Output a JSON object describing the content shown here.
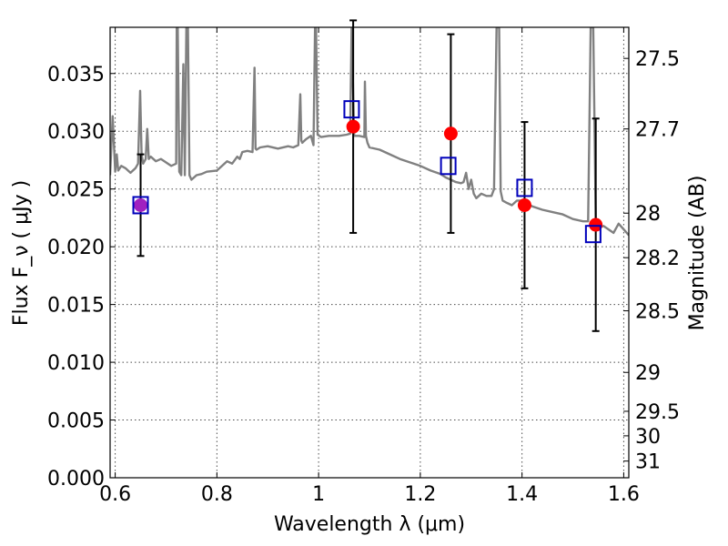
{
  "chart_data": {
    "type": "scatter",
    "xlabel": "Wavelength  λ (μm)",
    "ylabel": "Flux  F_ν  ( μJy )",
    "y2label": "Magnitude (AB)",
    "xlim": [
      0.59,
      1.61
    ],
    "ylim": [
      0.0,
      0.039
    ],
    "grid": true,
    "x_ticks": [
      {
        "value": 0.6,
        "label": "0.6"
      },
      {
        "value": 0.8,
        "label": "0.8"
      },
      {
        "value": 1.0,
        "label": "1"
      },
      {
        "value": 1.2,
        "label": "1.2"
      },
      {
        "value": 1.4,
        "label": "1.4"
      },
      {
        "value": 1.6,
        "label": "1.6"
      }
    ],
    "y_ticks": [
      {
        "value": 0.0,
        "label": "0.000"
      },
      {
        "value": 0.005,
        "label": "0.005"
      },
      {
        "value": 0.01,
        "label": "0.010"
      },
      {
        "value": 0.015,
        "label": "0.015"
      },
      {
        "value": 0.02,
        "label": "0.020"
      },
      {
        "value": 0.025,
        "label": "0.025"
      },
      {
        "value": 0.03,
        "label": "0.030"
      },
      {
        "value": 0.035,
        "label": "0.035"
      }
    ],
    "y2_ticks": [
      {
        "value": 27.5,
        "label": "27.5"
      },
      {
        "value": 27.7,
        "label": "27.7"
      },
      {
        "value": 28.0,
        "label": "28"
      },
      {
        "value": 28.2,
        "label": "28.2"
      },
      {
        "value": 28.5,
        "label": "28.5"
      },
      {
        "value": 29.0,
        "label": "29"
      },
      {
        "value": 29.5,
        "label": "29.5"
      },
      {
        "value": 30.0,
        "label": "30"
      },
      {
        "value": 31.0,
        "label": "31"
      }
    ],
    "model_spectrum": {
      "color": "#808080",
      "x": [
        0.59,
        0.595,
        0.6,
        0.603,
        0.606,
        0.612,
        0.62,
        0.63,
        0.64,
        0.645,
        0.649,
        0.652,
        0.655,
        0.66,
        0.663,
        0.666,
        0.67,
        0.68,
        0.69,
        0.7,
        0.71,
        0.72,
        0.721,
        0.723,
        0.726,
        0.73,
        0.734,
        0.737,
        0.74,
        0.743,
        0.746,
        0.75,
        0.76,
        0.77,
        0.78,
        0.8,
        0.82,
        0.83,
        0.84,
        0.845,
        0.85,
        0.86,
        0.87,
        0.874,
        0.876,
        0.878,
        0.885,
        0.9,
        0.92,
        0.94,
        0.95,
        0.96,
        0.964,
        0.966,
        0.968,
        0.975,
        0.985,
        0.99,
        0.993,
        0.995,
        0.998,
        1.005,
        1.02,
        1.04,
        1.055,
        1.062,
        1.065,
        1.07,
        1.08,
        1.09,
        1.091,
        1.093,
        1.096,
        1.1,
        1.12,
        1.14,
        1.16,
        1.18,
        1.2,
        1.22,
        1.24,
        1.25,
        1.26,
        1.27,
        1.28,
        1.285,
        1.29,
        1.295,
        1.3,
        1.305,
        1.31,
        1.32,
        1.33,
        1.34,
        1.345,
        1.35,
        1.355,
        1.358,
        1.362,
        1.37,
        1.38,
        1.39,
        1.4,
        1.42,
        1.44,
        1.46,
        1.48,
        1.5,
        1.52,
        1.53,
        1.535,
        1.54,
        1.545,
        1.55,
        1.56,
        1.58,
        1.59,
        1.6,
        1.61
      ],
      "y": [
        0.0262,
        0.0313,
        0.0265,
        0.028,
        0.0266,
        0.027,
        0.0268,
        0.0264,
        0.0268,
        0.0272,
        0.0335,
        0.028,
        0.0272,
        0.0276,
        0.0302,
        0.0276,
        0.0278,
        0.0274,
        0.0276,
        0.0273,
        0.027,
        0.0272,
        0.039,
        0.039,
        0.0265,
        0.0262,
        0.0358,
        0.0262,
        0.039,
        0.039,
        0.0262,
        0.0258,
        0.0262,
        0.0263,
        0.0265,
        0.0266,
        0.0274,
        0.0272,
        0.0278,
        0.0276,
        0.0282,
        0.0283,
        0.0282,
        0.0355,
        0.0285,
        0.0284,
        0.0286,
        0.0287,
        0.0285,
        0.0287,
        0.0286,
        0.0288,
        0.0332,
        0.0292,
        0.029,
        0.0293,
        0.0296,
        0.0288,
        0.039,
        0.039,
        0.0297,
        0.0295,
        0.0296,
        0.0296,
        0.0297,
        0.0298,
        0.039,
        0.0296,
        0.0296,
        0.0295,
        0.0343,
        0.0296,
        0.029,
        0.0286,
        0.0284,
        0.028,
        0.0276,
        0.0273,
        0.027,
        0.0266,
        0.0263,
        0.026,
        0.0258,
        0.0256,
        0.0255,
        0.0256,
        0.0264,
        0.025,
        0.0258,
        0.0246,
        0.0242,
        0.0246,
        0.0244,
        0.0244,
        0.025,
        0.039,
        0.039,
        0.0248,
        0.024,
        0.0238,
        0.0236,
        0.024,
        0.024,
        0.0235,
        0.0232,
        0.023,
        0.0228,
        0.0224,
        0.0222,
        0.0222,
        0.039,
        0.039,
        0.0222,
        0.0216,
        0.0218,
        0.0212,
        0.022,
        0.0215,
        0.021
      ]
    },
    "observed": {
      "color": "#ff0000",
      "x": [
        0.65,
        1.068,
        1.26,
        1.405,
        1.545
      ],
      "y": [
        0.0236,
        0.0304,
        0.0298,
        0.0236,
        0.0219
      ],
      "yerr": [
        0.0044,
        0.0092,
        0.0086,
        0.0072,
        0.0092
      ]
    },
    "model_photometry": {
      "color": "#0000bb",
      "x": [
        0.65,
        1.065,
        1.255,
        1.405,
        1.54
      ],
      "y": [
        0.0236,
        0.0319,
        0.027,
        0.0251,
        0.0211
      ]
    },
    "overlap_color": "#a020c0",
    "errorbar_color": "#000000"
  }
}
